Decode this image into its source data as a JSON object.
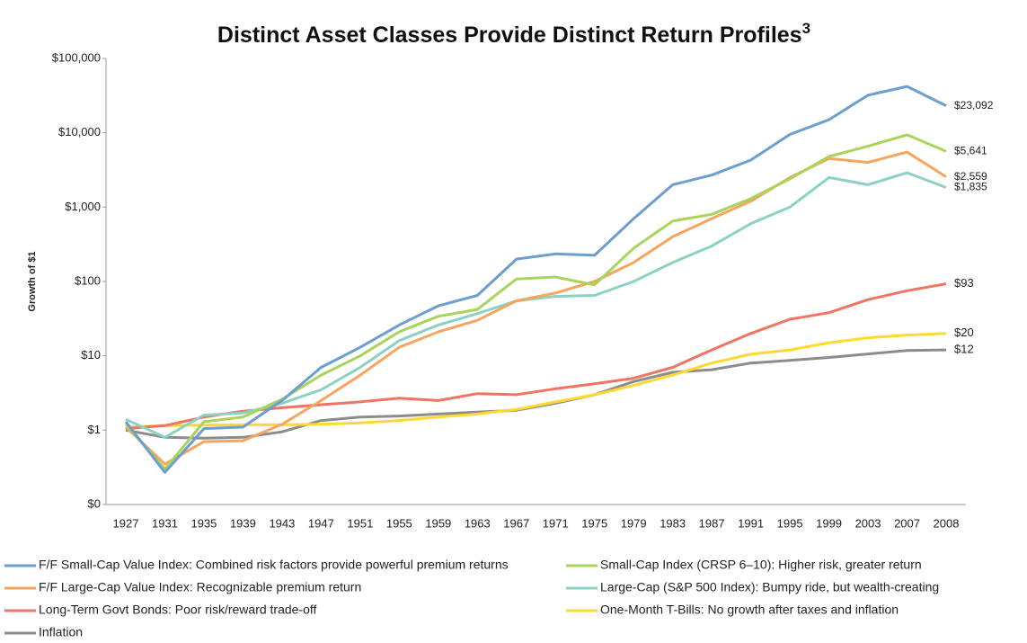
{
  "chart_data": {
    "type": "line",
    "title": "Distinct Asset Classes Provide Distinct Return Profiles",
    "title_footnote": "3",
    "y_label": "Growth of $1",
    "yscale": "log",
    "grid": false,
    "legend": "bottom",
    "categories": [
      "1927",
      "1931",
      "1935",
      "1939",
      "1943",
      "1947",
      "1951",
      "1955",
      "1959",
      "1963",
      "1967",
      "1971",
      "1975",
      "1979",
      "1983",
      "1987",
      "1991",
      "1995",
      "1999",
      "2003",
      "2007",
      "2008"
    ],
    "ylim": [
      0.1,
      100000
    ],
    "yticks": [
      {
        "value": 0.1,
        "label": "$0"
      },
      {
        "value": 1,
        "label": "$1"
      },
      {
        "value": 10,
        "label": "$10"
      },
      {
        "value": 100,
        "label": "$100"
      },
      {
        "value": 1000,
        "label": "$1,000"
      },
      {
        "value": 10000,
        "label": "$10,000"
      },
      {
        "value": 100000,
        "label": "$100,000"
      }
    ],
    "series": [
      {
        "name": "F/F Small-Cap Value Index: Combined risk factors provide powerful premium returns",
        "color": "#6c9ecf",
        "values": [
          1.3,
          0.27,
          1.05,
          1.1,
          2.5,
          7,
          13,
          26,
          47,
          65,
          200,
          235,
          225,
          700,
          2000,
          2700,
          4300,
          9500,
          15000,
          32000,
          42000,
          23092
        ],
        "value_labels": [
          null,
          null,
          null,
          null,
          null,
          null,
          null,
          null,
          null,
          null,
          null,
          null,
          null,
          null,
          null,
          null,
          null,
          null,
          null,
          null,
          null,
          "$23,092"
        ]
      },
      {
        "name": "Small-Cap Index (CRSP 6–10): Higher risk, greater return",
        "color": "#a8d45a",
        "values": [
          1.2,
          0.3,
          1.3,
          1.5,
          2.6,
          5.5,
          10,
          21,
          34,
          42,
          108,
          115,
          90,
          280,
          650,
          800,
          1300,
          2400,
          4800,
          6600,
          9400,
          5641
        ],
        "value_labels": [
          null,
          null,
          null,
          null,
          null,
          null,
          null,
          null,
          null,
          null,
          null,
          null,
          null,
          null,
          null,
          null,
          null,
          null,
          null,
          null,
          null,
          "$5,641"
        ]
      },
      {
        "name": "F/F Large-Cap Value Index: Recognizable premium return",
        "color": "#f5a55f",
        "values": [
          1.1,
          0.35,
          0.7,
          0.72,
          1.2,
          2.5,
          5.5,
          13,
          21,
          30,
          55,
          70,
          100,
          180,
          400,
          700,
          1200,
          2500,
          4500,
          4000,
          5500,
          2559
        ],
        "value_labels": [
          null,
          null,
          null,
          null,
          null,
          null,
          null,
          null,
          null,
          null,
          null,
          null,
          null,
          null,
          null,
          null,
          null,
          null,
          null,
          null,
          null,
          "$2,559"
        ]
      },
      {
        "name": "Large-Cap (S&P 500 Index): Bumpy ride, but wealth-creating",
        "color": "#8cd2c4",
        "values": [
          1.4,
          0.8,
          1.6,
          1.7,
          2.3,
          3.5,
          7,
          16,
          26,
          37,
          55,
          63,
          65,
          100,
          180,
          300,
          600,
          1000,
          2500,
          2000,
          2900,
          1835
        ],
        "value_labels": [
          null,
          null,
          null,
          null,
          null,
          null,
          null,
          null,
          null,
          null,
          null,
          null,
          null,
          null,
          null,
          null,
          null,
          null,
          null,
          null,
          null,
          "$1,835"
        ]
      },
      {
        "name": "Long-Term Govt Bonds: Poor risk/reward trade-off",
        "color": "#f07464",
        "values": [
          1.05,
          1.15,
          1.5,
          1.8,
          2.0,
          2.2,
          2.4,
          2.7,
          2.5,
          3.1,
          3.0,
          3.6,
          4.2,
          5.0,
          7,
          12,
          20,
          31,
          38,
          57,
          75,
          93
        ],
        "value_labels": [
          null,
          null,
          null,
          null,
          null,
          null,
          null,
          null,
          null,
          null,
          null,
          null,
          null,
          null,
          null,
          null,
          null,
          null,
          null,
          null,
          null,
          "$93"
        ]
      },
      {
        "name": "One-Month T-Bills: No growth after taxes and inflation",
        "color": "#ffd92f",
        "values": [
          1.1,
          1.15,
          1.17,
          1.18,
          1.18,
          1.2,
          1.25,
          1.35,
          1.5,
          1.65,
          1.9,
          2.4,
          3.0,
          4.0,
          5.5,
          8,
          10.5,
          12,
          15,
          17.5,
          19,
          20
        ],
        "value_labels": [
          null,
          null,
          null,
          null,
          null,
          null,
          null,
          null,
          null,
          null,
          null,
          null,
          null,
          null,
          null,
          null,
          null,
          null,
          null,
          null,
          null,
          "$20"
        ]
      },
      {
        "name": "Inflation",
        "color": "#8c8c8c",
        "values": [
          1.0,
          0.8,
          0.78,
          0.8,
          0.95,
          1.35,
          1.5,
          1.55,
          1.65,
          1.75,
          1.85,
          2.3,
          3.0,
          4.5,
          6,
          6.5,
          8,
          8.7,
          9.5,
          10.6,
          11.8,
          12
        ],
        "value_labels": [
          null,
          null,
          null,
          null,
          null,
          null,
          null,
          null,
          null,
          null,
          null,
          null,
          null,
          null,
          null,
          null,
          null,
          null,
          null,
          null,
          null,
          "$12"
        ]
      }
    ]
  }
}
